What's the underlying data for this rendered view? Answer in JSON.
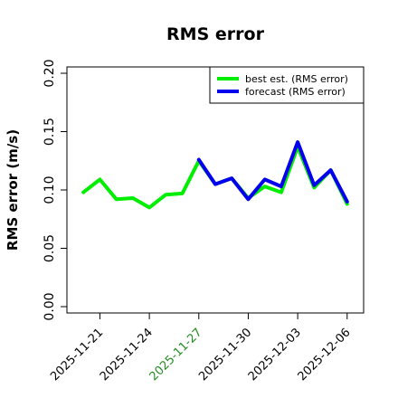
{
  "chart_data": {
    "type": "line",
    "title": "RMS error",
    "xlabel": "",
    "ylabel": "RMS error (m/s)",
    "ylim": [
      0,
      0.2
    ],
    "yticks": [
      "0.00",
      "0.05",
      "0.10",
      "0.15",
      "0.20"
    ],
    "xlim": [
      "2025-11-19",
      "2025-12-07"
    ],
    "xticks": [
      {
        "date": "2025-11-21",
        "label": "2025-11-21",
        "color": "#000000"
      },
      {
        "date": "2025-11-24",
        "label": "2025-11-24",
        "color": "#000000"
      },
      {
        "date": "2025-11-27",
        "label": "2025-11-27",
        "color": "#228b22"
      },
      {
        "date": "2025-11-30",
        "label": "2025-11-30",
        "color": "#000000"
      },
      {
        "date": "2025-12-03",
        "label": "2025-12-03",
        "color": "#000000"
      },
      {
        "date": "2025-12-06",
        "label": "2025-12-06",
        "color": "#000000"
      }
    ],
    "legend_position": "top-right",
    "grid": false,
    "series": [
      {
        "name": "best est. (RMS error)",
        "color": "#00ee00",
        "x": [
          "2025-11-20",
          "2025-11-21",
          "2025-11-22",
          "2025-11-23",
          "2025-11-24",
          "2025-11-25",
          "2025-11-26",
          "2025-11-27",
          "2025-11-28",
          "2025-11-29",
          "2025-11-30",
          "2025-12-01",
          "2025-12-02",
          "2025-12-03",
          "2025-12-04",
          "2025-12-05",
          "2025-12-06"
        ],
        "values": [
          0.098,
          0.109,
          0.092,
          0.093,
          0.085,
          0.096,
          0.097,
          0.125,
          0.105,
          0.11,
          0.093,
          0.103,
          0.098,
          0.137,
          0.102,
          0.117,
          0.088
        ]
      },
      {
        "name": "forecast (RMS error)",
        "color": "#0000ee",
        "x": [
          "2025-11-27",
          "2025-11-28",
          "2025-11-29",
          "2025-11-30",
          "2025-12-01",
          "2025-12-02",
          "2025-12-03",
          "2025-12-04",
          "2025-12-05",
          "2025-12-06"
        ],
        "values": [
          0.126,
          0.105,
          0.11,
          0.092,
          0.109,
          0.103,
          0.141,
          0.104,
          0.117,
          0.09
        ]
      }
    ]
  }
}
